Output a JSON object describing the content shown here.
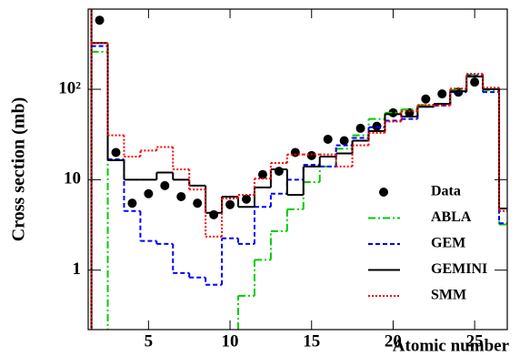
{
  "chart_data": {
    "type": "step",
    "ylabel": "Cross section (mb)",
    "xlabel": "Atomic number",
    "xlim": [
      1.3,
      27
    ],
    "xticks": [
      5,
      10,
      15,
      20,
      25
    ],
    "ylim": [
      0.22,
      770
    ],
    "yscale": "log",
    "yticks": [
      1,
      10,
      {
        "value": 100,
        "label": "10²"
      }
    ],
    "series": [
      {
        "name": "Data",
        "kind": "points",
        "color": "#000000",
        "x": [
          2,
          3,
          4,
          5,
          6,
          7,
          8,
          9,
          10,
          11,
          12,
          13,
          14,
          15,
          16,
          17,
          18,
          19,
          20,
          21,
          22,
          23,
          24,
          25
        ],
        "values": [
          580,
          20,
          5.5,
          7,
          8.6,
          6.5,
          5.5,
          4.1,
          5.3,
          6.1,
          11.4,
          12.4,
          20,
          18.5,
          28,
          27,
          37,
          39,
          55,
          55,
          78,
          89,
          93,
          120
        ]
      },
      {
        "name": "ABLA",
        "kind": "step",
        "color": "#00cc00",
        "dash": "8,3,2,3",
        "x": [
          2,
          3,
          4,
          5,
          6,
          7,
          8,
          9,
          10,
          11,
          12,
          13,
          14,
          15,
          16,
          17,
          18,
          19,
          20,
          21,
          22,
          23,
          24,
          25,
          26,
          27
        ],
        "values": [
          260,
          null,
          null,
          null,
          null,
          null,
          null,
          null,
          null,
          0.52,
          1.3,
          2.7,
          4.7,
          9.4,
          14,
          22,
          31,
          47,
          55,
          60,
          67,
          69,
          98,
          145,
          98,
          3.2
        ]
      },
      {
        "name": "GEM",
        "kind": "step",
        "color": "#0000ff",
        "dash": "5,3",
        "x": [
          2,
          3,
          4,
          5,
          6,
          7,
          8,
          9,
          10,
          11,
          12,
          13,
          14,
          15,
          16,
          17,
          18,
          19,
          20,
          21,
          22,
          23,
          24,
          25,
          26,
          27
        ],
        "values": [
          300,
          16.8,
          4.5,
          2.1,
          1.95,
          0.93,
          0.83,
          0.69,
          2.25,
          1.95,
          5,
          7,
          10,
          14.6,
          14,
          24,
          29,
          38,
          45,
          47,
          64,
          66,
          93,
          141,
          93,
          3.3
        ]
      },
      {
        "name": "GEMINI",
        "kind": "step",
        "color": "#000000",
        "dash": "none",
        "x": [
          2,
          3,
          4,
          5,
          6,
          7,
          8,
          9,
          10,
          11,
          12,
          13,
          14,
          15,
          16,
          17,
          18,
          19,
          20,
          21,
          22,
          23,
          24,
          25,
          26,
          27
        ],
        "values": [
          325,
          16.4,
          10,
          10,
          12,
          10,
          8.6,
          4.3,
          6.5,
          5,
          8.2,
          13,
          6.8,
          14,
          18,
          19.5,
          27,
          34.5,
          53,
          50,
          64,
          69,
          95,
          138,
          100,
          4.8
        ]
      },
      {
        "name": "SMM",
        "kind": "step",
        "color": "#ff0000",
        "dash": "2,2",
        "x": [
          2,
          3,
          4,
          5,
          6,
          7,
          8,
          9,
          10,
          11,
          12,
          13,
          14,
          15,
          16,
          17,
          18,
          19,
          20,
          21,
          22,
          23,
          24,
          25,
          26,
          27
        ],
        "values": [
          325,
          31,
          18,
          21,
          23,
          13,
          7.8,
          2.35,
          6.2,
          6.8,
          10.3,
          15.3,
          19,
          19,
          19,
          14,
          24,
          33,
          44,
          57,
          67,
          66,
          102,
          148,
          104,
          4.5
        ]
      }
    ]
  }
}
